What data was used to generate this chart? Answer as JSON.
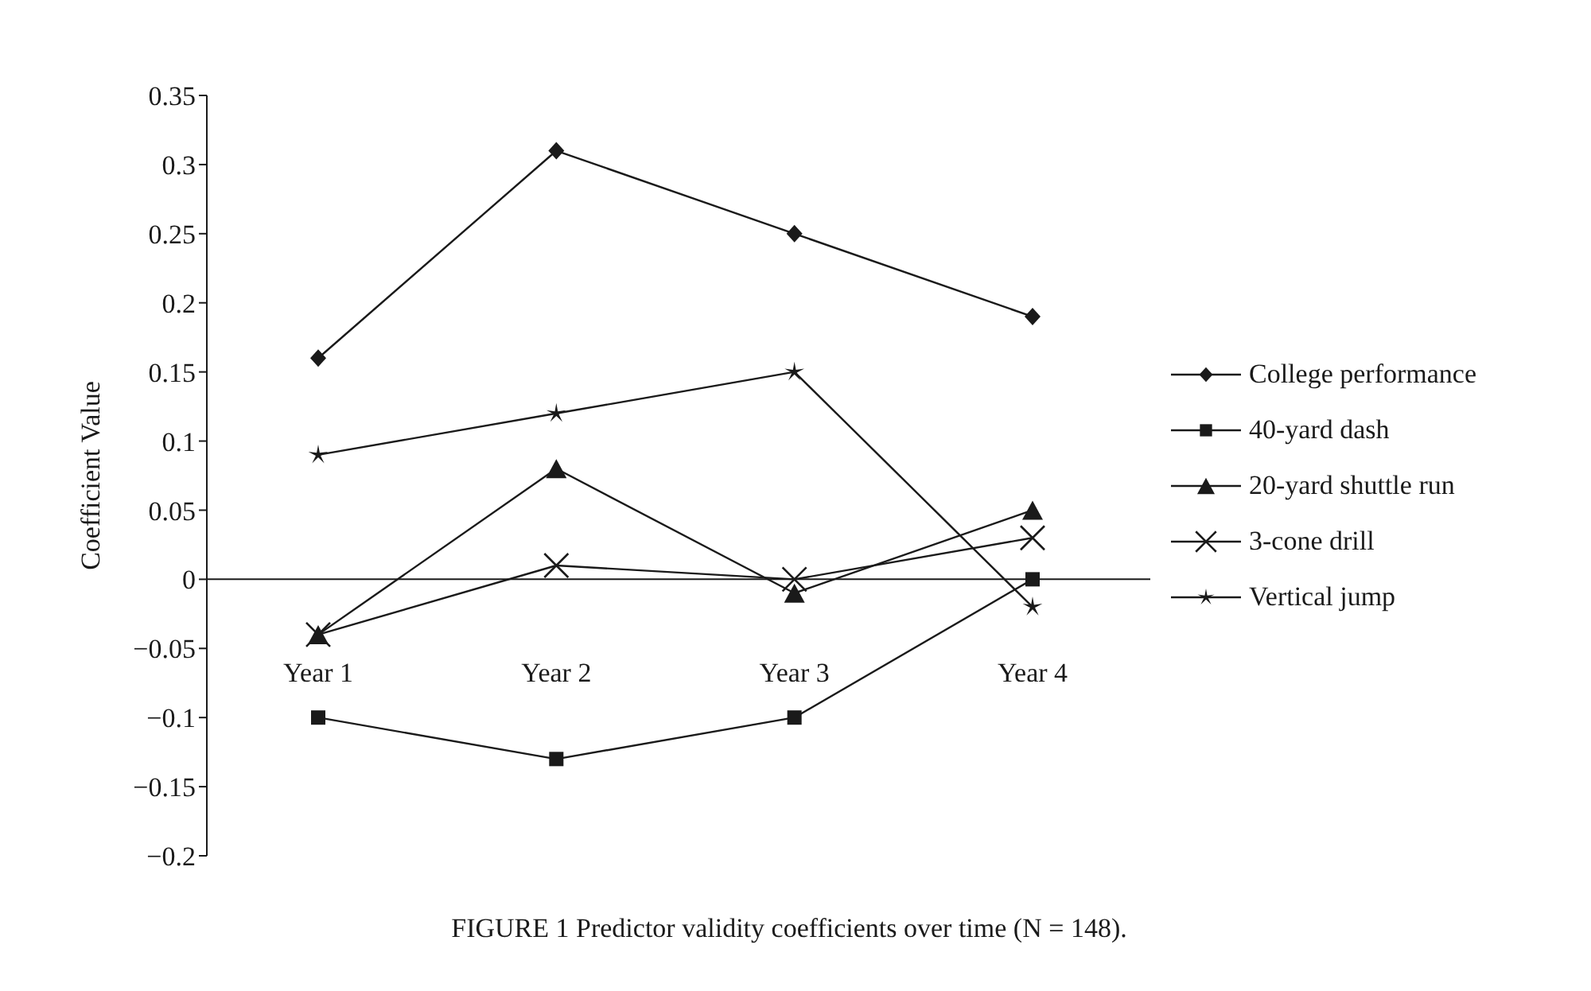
{
  "chart_data": {
    "type": "line",
    "title": "FIGURE 1 Predictor validity coefficients over time (N = 148).",
    "ylabel": "Coefficient Value",
    "categories": [
      "Year 1",
      "Year 2",
      "Year 3",
      "Year 4"
    ],
    "series": [
      {
        "name": "College performance",
        "color": "#1a1a1a",
        "marker": "diamond",
        "values": [
          0.16,
          0.31,
          0.25,
          0.19
        ]
      },
      {
        "name": "40-yard dash",
        "color": "#1a1a1a",
        "marker": "square",
        "values": [
          -0.1,
          -0.13,
          -0.1,
          0
        ]
      },
      {
        "name": "20-yard shuttle run",
        "color": "#1a1a1a",
        "marker": "triangle",
        "values": [
          -0.04,
          0.08,
          -0.01,
          0.05
        ]
      },
      {
        "name": "3-cone drill",
        "color": "#1a1a1a",
        "marker": "cross",
        "values": [
          -0.04,
          0.01,
          0,
          0.03
        ]
      },
      {
        "name": "Vertical jump",
        "color": "#1a1a1a",
        "marker": "star",
        "values": [
          0.09,
          0.12,
          0.15,
          -0.02
        ]
      }
    ],
    "ylim": [
      -0.2,
      0.35
    ],
    "yticks": [
      {
        "value": -0.2,
        "label": "−0.2"
      },
      {
        "value": -0.15,
        "label": "−0.15"
      },
      {
        "value": -0.1,
        "label": "−0.1"
      },
      {
        "value": -0.05,
        "label": "−0.05"
      },
      0,
      0.05,
      0.1,
      0.15,
      0.2,
      0.25,
      0.3,
      0.35
    ],
    "ref_lines": [
      {
        "axis": "y",
        "value": 0,
        "color": "#1a1a1a"
      }
    ],
    "grid": false,
    "legend": "right",
    "line_style": "solid"
  }
}
